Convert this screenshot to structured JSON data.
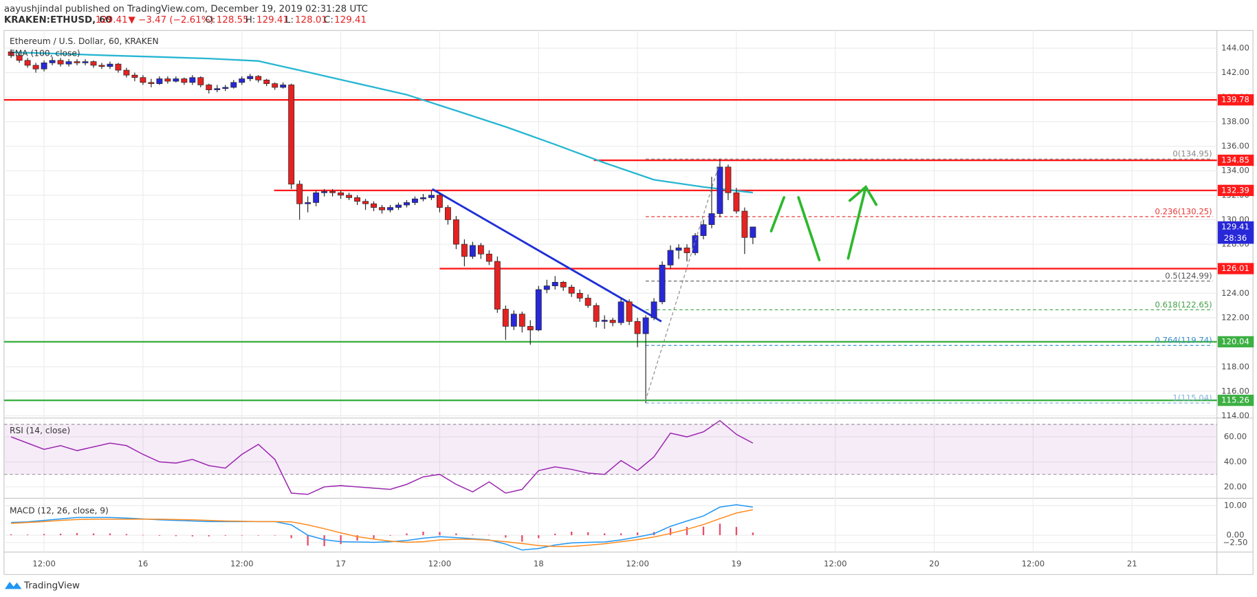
{
  "header": {
    "publisher": "aayushjindal published on TradingView.com, December 19, 2019 02:31:28 UTC",
    "symbol": "KRAKEN:ETHUSD, 60",
    "price": "129.41",
    "change": "▼ −3.47 (−2.61%)",
    "ohlc": [
      {
        "label": "O:",
        "value": "128.55"
      },
      {
        "label": "H:",
        "value": "129.41"
      },
      {
        "label": "L:",
        "value": "128.01"
      },
      {
        "label": "C:",
        "value": "129.41"
      }
    ],
    "logo": "TradingView"
  },
  "chart_data": [
    {
      "type": "candlestick",
      "title": "Ethereum / U.S. Dollar, 60, KRAKEN",
      "up_color": "#2828d8",
      "down_color": "#e52222",
      "x": [
        -4,
        -3,
        -2,
        -1,
        0,
        1,
        2,
        3,
        4,
        5,
        6,
        7,
        8,
        9,
        10,
        11,
        12,
        13,
        14,
        15,
        16,
        17,
        18,
        19,
        20,
        21,
        22,
        23,
        24,
        25,
        26,
        27,
        28,
        29,
        30,
        31,
        32,
        33,
        34,
        35,
        36,
        37,
        38,
        39,
        40,
        41,
        42,
        43,
        44,
        45,
        46,
        47,
        48,
        49,
        50,
        51,
        52,
        53,
        54,
        55,
        56,
        57,
        58,
        59,
        60,
        61,
        62,
        63,
        64,
        65,
        66,
        67,
        68,
        69,
        70,
        71,
        72,
        73,
        74,
        75,
        76,
        77,
        78,
        79,
        80,
        81,
        82,
        83,
        84,
        85,
        86
      ],
      "ohlc": [
        [
          143.7,
          143.9,
          143.2,
          143.4
        ],
        [
          143.4,
          143.6,
          142.8,
          143.0
        ],
        [
          143.0,
          143.2,
          142.4,
          142.6
        ],
        [
          142.6,
          142.8,
          142.0,
          142.3
        ],
        [
          142.3,
          143.0,
          142.1,
          142.8
        ],
        [
          142.8,
          143.3,
          142.6,
          143.0
        ],
        [
          143.0,
          143.2,
          142.5,
          142.7
        ],
        [
          142.7,
          143.1,
          142.5,
          142.9
        ],
        [
          142.9,
          143.1,
          142.6,
          142.8
        ],
        [
          142.8,
          143.1,
          142.6,
          142.9
        ],
        [
          142.9,
          143.0,
          142.4,
          142.6
        ],
        [
          142.6,
          142.8,
          142.3,
          142.5
        ],
        [
          142.5,
          142.9,
          142.3,
          142.7
        ],
        [
          142.7,
          142.8,
          142.0,
          142.2
        ],
        [
          142.2,
          142.4,
          141.6,
          141.8
        ],
        [
          141.8,
          142.0,
          141.3,
          141.6
        ],
        [
          141.6,
          141.8,
          141.0,
          141.2
        ],
        [
          141.2,
          141.5,
          140.8,
          141.1
        ],
        [
          141.1,
          141.7,
          141.0,
          141.5
        ],
        [
          141.5,
          141.7,
          141.1,
          141.3
        ],
        [
          141.3,
          141.7,
          141.2,
          141.5
        ],
        [
          141.5,
          141.6,
          141.0,
          141.2
        ],
        [
          141.2,
          141.8,
          141.0,
          141.6
        ],
        [
          141.6,
          141.7,
          140.8,
          141.0
        ],
        [
          141.0,
          141.1,
          140.3,
          140.6
        ],
        [
          140.6,
          141.0,
          140.4,
          140.7
        ],
        [
          140.7,
          141.0,
          140.5,
          140.8
        ],
        [
          140.8,
          141.4,
          140.7,
          141.2
        ],
        [
          141.2,
          141.7,
          141.0,
          141.5
        ],
        [
          141.5,
          141.9,
          141.3,
          141.7
        ],
        [
          141.7,
          141.8,
          141.2,
          141.4
        ],
        [
          141.4,
          141.5,
          140.9,
          141.1
        ],
        [
          141.1,
          141.2,
          140.6,
          140.8
        ],
        [
          140.8,
          141.2,
          140.7,
          141.0
        ],
        [
          141.0,
          141.1,
          132.5,
          132.9
        ],
        [
          132.9,
          133.2,
          130.0,
          131.3
        ],
        [
          131.3,
          131.9,
          130.6,
          131.4
        ],
        [
          131.4,
          132.4,
          131.1,
          132.2
        ],
        [
          132.2,
          132.5,
          131.9,
          132.3
        ],
        [
          132.3,
          132.5,
          131.9,
          132.2
        ],
        [
          132.2,
          132.4,
          131.7,
          132.0
        ],
        [
          132.0,
          132.2,
          131.6,
          131.8
        ],
        [
          131.8,
          132.0,
          131.2,
          131.5
        ],
        [
          131.5,
          131.7,
          130.8,
          131.3
        ],
        [
          131.3,
          131.5,
          130.7,
          131.0
        ],
        [
          131.0,
          131.2,
          130.5,
          130.8
        ],
        [
          130.8,
          131.2,
          130.6,
          131.0
        ],
        [
          131.0,
          131.4,
          130.8,
          131.2
        ],
        [
          131.2,
          131.6,
          131.0,
          131.4
        ],
        [
          131.4,
          131.9,
          131.2,
          131.7
        ],
        [
          131.7,
          132.1,
          131.5,
          131.8
        ],
        [
          131.8,
          132.4,
          131.6,
          132.0
        ],
        [
          132.0,
          132.2,
          130.6,
          131.0
        ],
        [
          131.0,
          131.2,
          129.6,
          130.0
        ],
        [
          130.0,
          130.3,
          127.6,
          128.0
        ],
        [
          128.0,
          128.4,
          126.2,
          127.0
        ],
        [
          127.0,
          128.2,
          126.8,
          127.9
        ],
        [
          127.9,
          128.1,
          126.8,
          127.2
        ],
        [
          127.2,
          127.5,
          126.3,
          126.6
        ],
        [
          126.6,
          127.0,
          122.4,
          122.7
        ],
        [
          122.7,
          123.0,
          120.2,
          121.3
        ],
        [
          121.3,
          122.6,
          121.0,
          122.3
        ],
        [
          122.3,
          122.5,
          120.8,
          121.3
        ],
        [
          121.3,
          121.8,
          119.8,
          121.0
        ],
        [
          121.0,
          124.6,
          120.9,
          124.3
        ],
        [
          124.3,
          125.1,
          124.0,
          124.6
        ],
        [
          124.6,
          125.4,
          124.3,
          124.9
        ],
        [
          124.9,
          125.0,
          124.2,
          124.5
        ],
        [
          124.5,
          124.7,
          123.7,
          124.0
        ],
        [
          124.0,
          124.3,
          123.3,
          123.6
        ],
        [
          123.6,
          123.9,
          122.8,
          123.0
        ],
        [
          123.0,
          123.2,
          121.2,
          121.7
        ],
        [
          121.7,
          122.2,
          121.1,
          121.8
        ],
        [
          121.8,
          122.0,
          121.3,
          121.6
        ],
        [
          121.6,
          123.6,
          121.4,
          123.3
        ],
        [
          123.3,
          123.5,
          121.4,
          121.7
        ],
        [
          121.7,
          122.0,
          119.6,
          120.7
        ],
        [
          120.7,
          122.2,
          115.04,
          122.0
        ],
        [
          122.0,
          123.6,
          121.8,
          123.3
        ],
        [
          123.3,
          126.6,
          123.1,
          126.3
        ],
        [
          126.3,
          127.9,
          126.0,
          127.5
        ],
        [
          127.5,
          128.0,
          126.8,
          127.7
        ],
        [
          127.7,
          128.0,
          126.6,
          127.3
        ],
        [
          127.3,
          128.9,
          127.1,
          128.7
        ],
        [
          128.7,
          130.0,
          128.4,
          129.6
        ],
        [
          129.6,
          133.5,
          129.3,
          130.5
        ],
        [
          130.5,
          134.95,
          130.2,
          134.3
        ],
        [
          134.3,
          134.5,
          131.6,
          132.2
        ],
        [
          132.2,
          132.6,
          130.5,
          130.7
        ],
        [
          130.7,
          131.0,
          127.2,
          128.55
        ],
        [
          128.55,
          129.41,
          128.01,
          129.41
        ]
      ],
      "series": [
        {
          "name": "EMA (100, close)",
          "color": "#26b6d2",
          "x": [
            -4,
            2,
            8,
            14,
            20,
            26,
            32,
            38,
            44,
            50,
            56,
            62,
            68,
            74,
            80,
            86
          ],
          "values": [
            143.67,
            143.54,
            143.4,
            143.28,
            143.15,
            142.95,
            142.04,
            141.12,
            140.2,
            138.9,
            137.58,
            136.14,
            134.64,
            133.26,
            132.67,
            132.21
          ]
        }
      ],
      "xlim": [
        -4.86,
        142.3
      ],
      "xticks": [
        {
          "value": 0,
          "label": "12:00"
        },
        {
          "value": 12,
          "label": "16"
        },
        {
          "value": 24,
          "label": "12:00"
        },
        {
          "value": 36,
          "label": "17"
        },
        {
          "value": 48,
          "label": "12:00"
        },
        {
          "value": 60,
          "label": "18"
        },
        {
          "value": 72,
          "label": "12:00"
        },
        {
          "value": 84,
          "label": "19"
        },
        {
          "value": 96,
          "label": "12:00"
        },
        {
          "value": 108,
          "label": "20"
        },
        {
          "value": 120,
          "label": "12:00"
        },
        {
          "value": 132,
          "label": "21"
        }
      ],
      "ylim": [
        113.88,
        145.44
      ],
      "yticks": [
        {
          "value": 114,
          "label": "114.00"
        },
        {
          "value": 116,
          "label": "116.00"
        },
        {
          "value": 118,
          "label": "118.00"
        },
        {
          "value": 120,
          "label": "120.00"
        },
        {
          "value": 122,
          "label": "122.00"
        },
        {
          "value": 124,
          "label": "124.00"
        },
        {
          "value": 126,
          "label": "126.00"
        },
        {
          "value": 128,
          "label": "128.00"
        },
        {
          "value": 130,
          "label": "130.00"
        },
        {
          "value": 132,
          "label": "132.00"
        },
        {
          "value": 134,
          "label": "134.00"
        },
        {
          "value": 136,
          "label": "136.00"
        },
        {
          "value": 138,
          "label": "138.00"
        },
        {
          "value": 140,
          "label": "140.00"
        },
        {
          "value": 142,
          "label": "142.00"
        },
        {
          "value": 144,
          "label": "144.00"
        }
      ],
      "grid": true,
      "levels": [
        {
          "value": 139.78,
          "label": "139.78",
          "color": "#ff1a1a"
        },
        {
          "value": 134.85,
          "label": "134.85",
          "color": "#ff1a1a",
          "x_start": 66.7
        },
        {
          "value": 132.39,
          "label": "132.39",
          "color": "#ff1a1a",
          "x_start": 27.9
        },
        {
          "value": 126.01,
          "label": "126.01",
          "color": "#ff1a1a",
          "x_start": 48
        },
        {
          "value": 120.04,
          "label": "120.04",
          "color": "#3cb043"
        },
        {
          "value": 115.26,
          "label": "115.26",
          "color": "#3cb043"
        }
      ],
      "fib": {
        "x_start": 73,
        "levels": [
          {
            "value": 134.95,
            "label": "0(134.95)",
            "color": "#888888"
          },
          {
            "value": 130.25,
            "label": "0.236(130.25)",
            "color": "#e53935"
          },
          {
            "value": 124.99,
            "label": "0.5(124.99)",
            "color": "#555555"
          },
          {
            "value": 122.65,
            "label": "0.618(122.65)",
            "color": "#43a047"
          },
          {
            "value": 119.74,
            "label": "0.764(119.74)",
            "color": "#3a8fc8"
          },
          {
            "value": 115.04,
            "label": "1(115.04)",
            "color": "#7fb2d8"
          }
        ]
      },
      "trendline": {
        "color": "#1f2fd6",
        "x": [
          47.1,
          74.9
        ],
        "y": [
          132.5,
          121.7
        ]
      },
      "current_price": {
        "value": 129.41,
        "label": "129.41",
        "countdown": "28:36",
        "color": "#2828d8"
      }
    },
    {
      "type": "line",
      "title": "RSI (14, close)",
      "x": [
        -4,
        -2,
        0,
        2,
        4,
        6,
        8,
        10,
        12,
        14,
        16,
        18,
        20,
        22,
        24,
        26,
        28,
        30,
        32,
        34,
        36,
        38,
        40,
        42,
        44,
        46,
        48,
        50,
        52,
        54,
        56,
        58,
        60,
        62,
        64,
        66,
        68,
        70,
        72,
        74,
        76,
        78,
        80,
        82,
        84,
        86
      ],
      "series": [
        {
          "color": "#9c27b0",
          "values": [
            60,
            55,
            50,
            53,
            49,
            52,
            55,
            53,
            46,
            40,
            39,
            42,
            37,
            35,
            46,
            54,
            42,
            15,
            14,
            20,
            21,
            20,
            19,
            18,
            22,
            28,
            30,
            22,
            16,
            24,
            15,
            18,
            33,
            36,
            34,
            31,
            30,
            41,
            33,
            44,
            63,
            60,
            64,
            73,
            62,
            55
          ]
        }
      ],
      "band": [
        30,
        70
      ],
      "band_color": "#9c27b0",
      "ylim": [
        11.5,
        74.4
      ],
      "yticks": [
        {
          "value": 20,
          "label": "20.00"
        },
        {
          "value": 40,
          "label": "40.00"
        },
        {
          "value": 60,
          "label": "60.00"
        }
      ]
    },
    {
      "type": "macd",
      "title": "MACD (12, 26, close, 9)",
      "x": [
        -4,
        -2,
        0,
        2,
        4,
        6,
        8,
        10,
        12,
        14,
        16,
        18,
        20,
        22,
        24,
        26,
        28,
        30,
        32,
        34,
        36,
        38,
        40,
        42,
        44,
        46,
        48,
        50,
        52,
        54,
        56,
        58,
        60,
        62,
        64,
        66,
        68,
        70,
        72,
        74,
        76,
        78,
        80,
        82,
        84,
        86
      ],
      "series": [
        {
          "color": "#2196f3",
          "values": [
            4.3,
            4.5,
            5,
            5.5,
            6,
            6,
            6,
            5.8,
            5.5,
            5.2,
            5,
            4.8,
            4.6,
            4.6,
            4.6,
            4.6,
            4.6,
            3.5,
            0,
            -1.5,
            -2.2,
            -2.3,
            -2.4,
            -2.2,
            -1.8,
            -1,
            -0.5,
            -0.8,
            -1.2,
            -1.6,
            -3,
            -5,
            -4.5,
            -3.3,
            -2.6,
            -2.4,
            -2.3,
            -1.6,
            -0.6,
            0.5,
            3,
            4.8,
            6.5,
            9.5,
            10.3,
            9.5
          ]
        },
        {
          "color": "#ff8a1c",
          "values": [
            4,
            4.3,
            4.6,
            5,
            5.3,
            5.4,
            5.4,
            5.4,
            5.4,
            5.4,
            5.3,
            5.2,
            5,
            4.8,
            4.7,
            4.6,
            4.6,
            4.5,
            3.5,
            2.2,
            0.8,
            -0.5,
            -1.3,
            -2,
            -2.4,
            -2.2,
            -1.6,
            -1.4,
            -1.4,
            -1.7,
            -2.2,
            -2.8,
            -3.5,
            -3.8,
            -3.8,
            -3.4,
            -2.9,
            -2.2,
            -1.5,
            -0.6,
            0.6,
            2,
            3.6,
            5.6,
            7.5,
            8.6
          ]
        }
      ],
      "histogram": {
        "color": "#e84d6a",
        "values": [
          0.3,
          0.2,
          0.4,
          0.5,
          0.7,
          0.6,
          0.6,
          0.4,
          0.1,
          -0.2,
          -0.3,
          -0.4,
          -0.4,
          -0.2,
          -0.1,
          0,
          0,
          -1,
          -3.5,
          -3.7,
          -3,
          -1.8,
          -1.1,
          -0.2,
          0.6,
          1.2,
          1.1,
          0.6,
          0.2,
          0.1,
          -0.8,
          -2.2,
          -1,
          0.5,
          1.2,
          1,
          0.6,
          0.6,
          0.9,
          1.1,
          2.4,
          2.8,
          2.9,
          3.9,
          2.8,
          0.9
        ]
      },
      "ylim": [
        -5.7,
        12.2
      ],
      "yticks": [
        {
          "value": 10,
          "label": "10.00"
        },
        {
          "value": 0,
          "label": "0.00"
        },
        {
          "value": -2.5,
          "label": "−2.50"
        }
      ]
    }
  ]
}
